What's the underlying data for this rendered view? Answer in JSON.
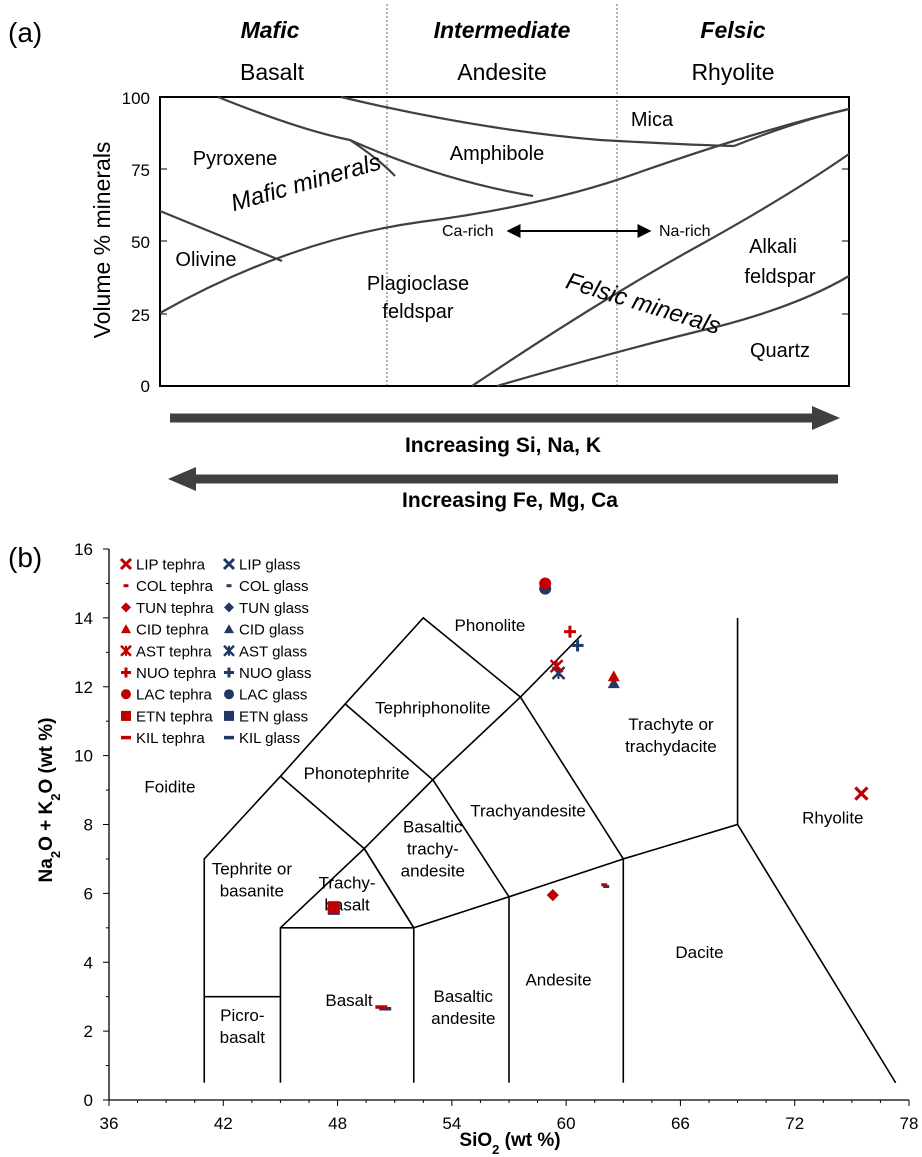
{
  "panel_a": {
    "label": "(a)",
    "columns": [
      {
        "group": "Mafic",
        "rock": "Basalt"
      },
      {
        "group": "Intermediate",
        "rock": "Andesite"
      },
      {
        "group": "Felsic",
        "rock": "Rhyolite"
      }
    ],
    "ylabel": "Volume % minerals",
    "yticks": [
      "100",
      "75",
      "50",
      "25",
      "0"
    ],
    "regions": {
      "mica": "Mica",
      "pyroxene": "Pyroxene",
      "amphibole": "Amphibole",
      "olivine": "Olivine",
      "plag1": "Plagioclase",
      "plag2": "feldspar",
      "alkali1": "Alkali",
      "alkali2": "feldspar",
      "quartz": "Quartz",
      "ca_rich": "Ca-rich",
      "na_rich": "Na-rich"
    },
    "mafic_label": "Mafic minerals",
    "felsic_label": "Felsic minerals",
    "mafic_color": "#548235",
    "felsic_color": "#7f6000",
    "arrow_right": "Increasing Si, Na, K",
    "arrow_left": "Increasing Fe, Mg, Ca"
  },
  "chart_data": {
    "label": "(b)",
    "type": "scatter",
    "xlabel": "SiO2 (wt %)",
    "ylabel": "Na2O + K2O (wt %)",
    "xlim": [
      36,
      78
    ],
    "ylim": [
      0,
      16
    ],
    "xticks": [
      36,
      42,
      48,
      54,
      60,
      66,
      72,
      78
    ],
    "yticks": [
      0,
      2,
      4,
      6,
      8,
      10,
      12,
      14,
      16
    ],
    "tephra_color": "#c00000",
    "glass_color": "#1f3864",
    "legend_position": "top-left",
    "legend": [
      {
        "name": "LIP tephra",
        "marker": "x"
      },
      {
        "name": "LIP glass",
        "marker": "x"
      },
      {
        "name": "COL tephra",
        "marker": "dash"
      },
      {
        "name": "COL glass",
        "marker": "dash"
      },
      {
        "name": "TUN tephra",
        "marker": "diamond"
      },
      {
        "name": "TUN glass",
        "marker": "diamond"
      },
      {
        "name": "CID tephra",
        "marker": "triangle"
      },
      {
        "name": "CID glass",
        "marker": "triangle"
      },
      {
        "name": "AST tephra",
        "marker": "star"
      },
      {
        "name": "AST glass",
        "marker": "star"
      },
      {
        "name": "NUO tephra",
        "marker": "plus"
      },
      {
        "name": "NUO glass",
        "marker": "plus"
      },
      {
        "name": "LAC tephra",
        "marker": "circle"
      },
      {
        "name": "LAC glass",
        "marker": "circle"
      },
      {
        "name": "ETN tephra",
        "marker": "square"
      },
      {
        "name": "ETN glass",
        "marker": "square"
      },
      {
        "name": "KIL tephra",
        "marker": "longdash"
      },
      {
        "name": "KIL glass",
        "marker": "longdash"
      }
    ],
    "points": [
      {
        "series": "LIP glass",
        "x": 75.5,
        "y": 8.9
      },
      {
        "series": "LIP tephra",
        "x": 75.5,
        "y": 8.9
      },
      {
        "series": "COL glass",
        "x": 62.1,
        "y": 6.2
      },
      {
        "series": "COL tephra",
        "x": 62.0,
        "y": 6.25
      },
      {
        "series": "TUN glass",
        "x": 59.3,
        "y": 5.95
      },
      {
        "series": "TUN tephra",
        "x": 59.3,
        "y": 5.95
      },
      {
        "series": "CID glass",
        "x": 62.5,
        "y": 12.1
      },
      {
        "series": "CID tephra",
        "x": 62.5,
        "y": 12.3
      },
      {
        "series": "AST glass",
        "x": 59.6,
        "y": 12.4
      },
      {
        "series": "AST tephra",
        "x": 59.5,
        "y": 12.6
      },
      {
        "series": "NUO glass",
        "x": 60.6,
        "y": 13.2
      },
      {
        "series": "NUO tephra",
        "x": 60.2,
        "y": 13.6
      },
      {
        "series": "LAC glass",
        "x": 58.9,
        "y": 14.85
      },
      {
        "series": "LAC tephra",
        "x": 58.9,
        "y": 15.0
      },
      {
        "series": "ETN glass",
        "x": 47.8,
        "y": 5.55
      },
      {
        "series": "ETN tephra",
        "x": 47.8,
        "y": 5.6
      },
      {
        "series": "KIL glass",
        "x": 50.5,
        "y": 2.65
      },
      {
        "series": "KIL tephra",
        "x": 50.3,
        "y": 2.7
      }
    ],
    "fields": [
      {
        "name": "Foidite",
        "lines": [
          "Foidite"
        ],
        "x": 39.2,
        "y": 9.1
      },
      {
        "name": "Phonolite",
        "lines": [
          "Phonolite"
        ],
        "x": 56.0,
        "y": 13.8
      },
      {
        "name": "Tephriphonolite",
        "lines": [
          "Tephriphonolite"
        ],
        "x": 53.0,
        "y": 11.4
      },
      {
        "name": "Phonotephrite",
        "lines": [
          "Phonotephrite"
        ],
        "x": 49.0,
        "y": 9.5
      },
      {
        "name": "Trachyandesite",
        "lines": [
          "Trachyandesite"
        ],
        "x": 58.0,
        "y": 8.4
      },
      {
        "name": "Trachyte or trachydacite",
        "lines": [
          "Trachyte or",
          "trachydacite"
        ],
        "x": 65.5,
        "y": 10.6
      },
      {
        "name": "Tephrite or basanite",
        "lines": [
          "Tephrite or",
          "basanite"
        ],
        "x": 43.5,
        "y": 6.4
      },
      {
        "name": "Trachy-basalt",
        "lines": [
          "Trachy-",
          "basalt"
        ],
        "x": 48.5,
        "y": 6.0
      },
      {
        "name": "Basaltic trachy-andesite",
        "lines": [
          "Basaltic",
          "trachy-",
          "andesite"
        ],
        "x": 53.0,
        "y": 7.3
      },
      {
        "name": "Rhyolite",
        "lines": [
          "Rhyolite"
        ],
        "x": 74.0,
        "y": 8.2
      },
      {
        "name": "Picro-basalt",
        "lines": [
          "Picro-",
          "basalt"
        ],
        "x": 43.0,
        "y": 2.15
      },
      {
        "name": "Basalt",
        "lines": [
          "Basalt"
        ],
        "x": 48.6,
        "y": 2.9
      },
      {
        "name": "Basaltic andesite",
        "lines": [
          "Basaltic",
          "andesite"
        ],
        "x": 54.6,
        "y": 2.7
      },
      {
        "name": "Andesite",
        "lines": [
          "Andesite"
        ],
        "x": 59.6,
        "y": 3.5
      },
      {
        "name": "Dacite",
        "lines": [
          "Dacite"
        ],
        "x": 67.0,
        "y": 4.3
      }
    ],
    "boundaries": [
      [
        [
          41,
          0.5
        ],
        [
          41,
          3
        ],
        [
          45,
          3
        ]
      ],
      [
        [
          41,
          3
        ],
        [
          41,
          7
        ],
        [
          45,
          9.4
        ],
        [
          48.4,
          11.5
        ],
        [
          52.5,
          14
        ],
        [
          57.6,
          11.7
        ],
        [
          63,
          7
        ],
        [
          69,
          8
        ],
        [
          77.3,
          0.5
        ]
      ],
      [
        [
          45,
          0.5
        ],
        [
          45,
          5
        ],
        [
          49.4,
          7.3
        ],
        [
          52,
          5
        ],
        [
          57,
          5.9
        ],
        [
          63,
          7
        ],
        [
          63,
          0.5
        ]
      ],
      [
        [
          45,
          5
        ],
        [
          52,
          5
        ],
        [
          52,
          0.5
        ]
      ],
      [
        [
          57,
          0.5
        ],
        [
          57,
          5.9
        ],
        [
          53,
          9.3
        ],
        [
          57.6,
          11.7
        ]
      ],
      [
        [
          45,
          9.4
        ],
        [
          49.4,
          7.3
        ],
        [
          53,
          9.3
        ],
        [
          48.4,
          11.5
        ]
      ],
      [
        [
          52,
          5
        ],
        [
          49.4,
          7.3
        ]
      ],
      [
        [
          69,
          8
        ],
        [
          69,
          14
        ]
      ]
    ],
    "alkaline_line": [
      [
        57.6,
        11.7
      ],
      [
        60.8,
        13.5
      ]
    ]
  }
}
